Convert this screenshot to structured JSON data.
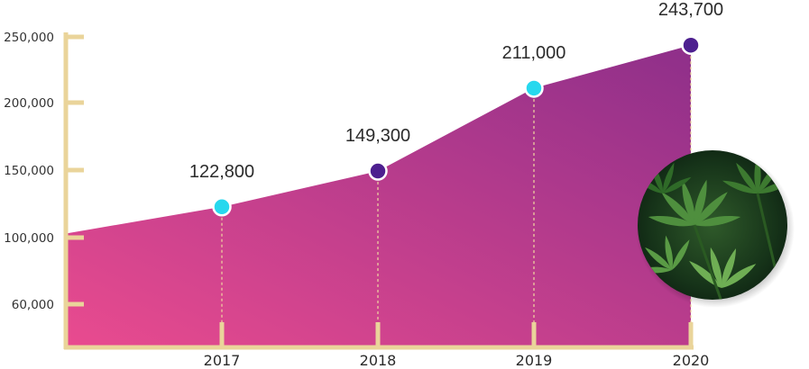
{
  "chart_data": {
    "type": "area",
    "title": "",
    "xlabel": "",
    "ylabel": "",
    "x": [
      "",
      "2017",
      "2018",
      "2019",
      "2020"
    ],
    "values": [
      103000,
      122800,
      149300,
      211000,
      243700
    ],
    "data_labels": [
      "",
      "122,800",
      "149,300",
      "211,000",
      "243,700"
    ],
    "y_ticks": [
      {
        "value": 60000,
        "label": "60,000"
      },
      {
        "value": 100000,
        "label": "100,000"
      },
      {
        "value": 150000,
        "label": "150,000"
      },
      {
        "value": 200000,
        "label": "200,000"
      },
      {
        "value": 250000,
        "label": "250,000"
      }
    ],
    "x_ticks": [
      "2017",
      "2018",
      "2019",
      "2020"
    ],
    "grid": false,
    "legend": "none",
    "colors": {
      "area_start": "#e94b8f",
      "area_end": "#8e2f8a",
      "axis": "#ead49a",
      "marker_light": "#27d8ee",
      "marker_dark": "#4d1f8f",
      "guide": "#f0d7a0"
    },
    "marker_styles": [
      "none",
      "light",
      "dark",
      "light",
      "dark"
    ]
  },
  "decoration": {
    "photo_icon": "cannabis-leaves-photo"
  }
}
